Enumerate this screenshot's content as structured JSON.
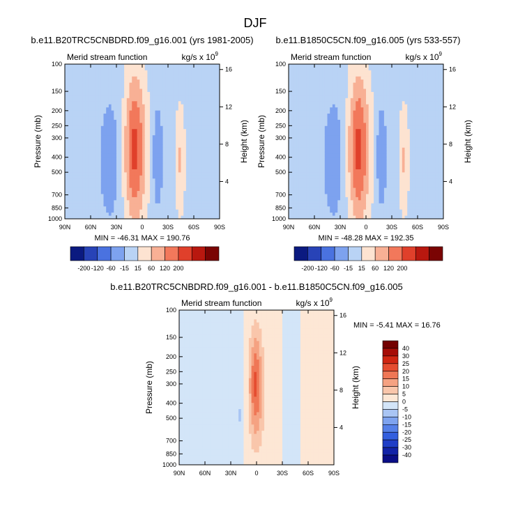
{
  "figure": {
    "title": "DJF"
  },
  "chart_data": [
    {
      "type": "heatmap",
      "title": "b.e11.B20TRC5CNBDRD.f09_g16.001 (yrs 1981-2005)",
      "corner_label": "Merid stream function",
      "units_prefix": "kg/s x 10",
      "units_exp": "9",
      "ylabel": "Pressure (mb)",
      "ylabel_right": "Height (km)",
      "x_ticks": [
        "90N",
        "60N",
        "30N",
        "0",
        "30S",
        "60S",
        "90S"
      ],
      "y_ticks": [
        100,
        150,
        200,
        250,
        300,
        400,
        500,
        700,
        850,
        1000
      ],
      "y_right_ticks": [
        16,
        12,
        8,
        4
      ],
      "ylim": [
        1000,
        100
      ],
      "xlim": [
        90,
        -90
      ],
      "stats_text": "MIN = -46.31   MAX = 190.76",
      "min": -46.31,
      "max": 190.76,
      "levels": [
        -200,
        -120,
        -60,
        -15,
        15,
        60,
        120,
        200
      ],
      "colorbar_labels": [
        "-200",
        "-120",
        "-60",
        "-15",
        "15",
        "60",
        "120",
        "200"
      ],
      "cells": [
        {
          "lat": 27,
          "p": 450,
          "dlat": 8,
          "k": 4,
          "v": 190
        },
        {
          "lat": -45,
          "p": 420,
          "dlat": 6,
          "k": 2,
          "v": 60
        },
        {
          "lat": 42,
          "p": 480,
          "dlat": 7,
          "k": 2,
          "v": -46
        },
        {
          "lat": -20,
          "p": 470,
          "dlat": 5,
          "k": 2,
          "v": -40
        }
      ]
    },
    {
      "type": "heatmap",
      "title": "b.e11.B1850C5CN.f09_g16.005 (yrs 533-557)",
      "corner_label": "Merid stream function",
      "units_prefix": "kg/s x 10",
      "units_exp": "9",
      "ylabel": "Pressure (mb)",
      "ylabel_right": "Height (km)",
      "x_ticks": [
        "90N",
        "60N",
        "30N",
        "0",
        "30S",
        "60S",
        "90S"
      ],
      "y_ticks": [
        100,
        150,
        200,
        250,
        300,
        400,
        500,
        700,
        850,
        1000
      ],
      "y_right_ticks": [
        16,
        12,
        8,
        4
      ],
      "ylim": [
        1000,
        100
      ],
      "xlim": [
        90,
        -90
      ],
      "stats_text": "MIN = -48.28   MAX = 192.35",
      "min": -48.28,
      "max": 192.35,
      "levels": [
        -200,
        -120,
        -60,
        -15,
        15,
        60,
        120,
        200
      ],
      "colorbar_labels": [
        "-200",
        "-120",
        "-60",
        "-15",
        "15",
        "60",
        "120",
        "200"
      ],
      "cells": [
        {
          "lat": 27,
          "p": 450,
          "dlat": 8,
          "k": 4,
          "v": 192
        },
        {
          "lat": -45,
          "p": 420,
          "dlat": 6,
          "k": 2,
          "v": 60
        },
        {
          "lat": 42,
          "p": 480,
          "dlat": 7,
          "k": 2,
          "v": -48
        },
        {
          "lat": -20,
          "p": 470,
          "dlat": 5,
          "k": 2,
          "v": -42
        }
      ]
    },
    {
      "type": "heatmap",
      "title": "b.e11.B20TRC5CNBDRD.f09_g16.001 - b.e11.B1850C5CN.f09_g16.005",
      "corner_label": "Merid stream function",
      "units_prefix": "kg/s x 10",
      "units_exp": "9",
      "ylabel": "Pressure (mb)",
      "ylabel_right": "Height (km)",
      "x_ticks": [
        "90N",
        "60N",
        "30N",
        "0",
        "30S",
        "60S",
        "90S"
      ],
      "y_ticks": [
        100,
        150,
        200,
        250,
        300,
        400,
        500,
        700,
        850,
        1000
      ],
      "y_right_ticks": [
        16,
        12,
        8,
        4
      ],
      "ylim": [
        1000,
        100
      ],
      "xlim": [
        90,
        -90
      ],
      "stats_text": "MIN = -5.41   MAX = 16.76",
      "min": -5.41,
      "max": 16.76,
      "levels": [
        -40,
        -30,
        -25,
        -20,
        -15,
        -10,
        -5,
        0,
        5,
        10,
        15,
        20,
        25,
        30,
        40
      ],
      "colorbar_labels": [
        "40",
        "30",
        "25",
        "20",
        "15",
        "10",
        "5",
        "0",
        "-5",
        "-10",
        "-15",
        "-20",
        "-25",
        "-30",
        "-40"
      ],
      "cells": [
        {
          "lat": 3,
          "p": 380,
          "dlat": 5,
          "k": 2,
          "v": 16
        },
        {
          "lat": 20,
          "p": 520,
          "dlat": 2,
          "k": 1,
          "v": -5
        },
        {
          "lat": -29,
          "p": 600,
          "dlat": 1.5,
          "k": 1,
          "v": -4
        }
      ]
    }
  ]
}
